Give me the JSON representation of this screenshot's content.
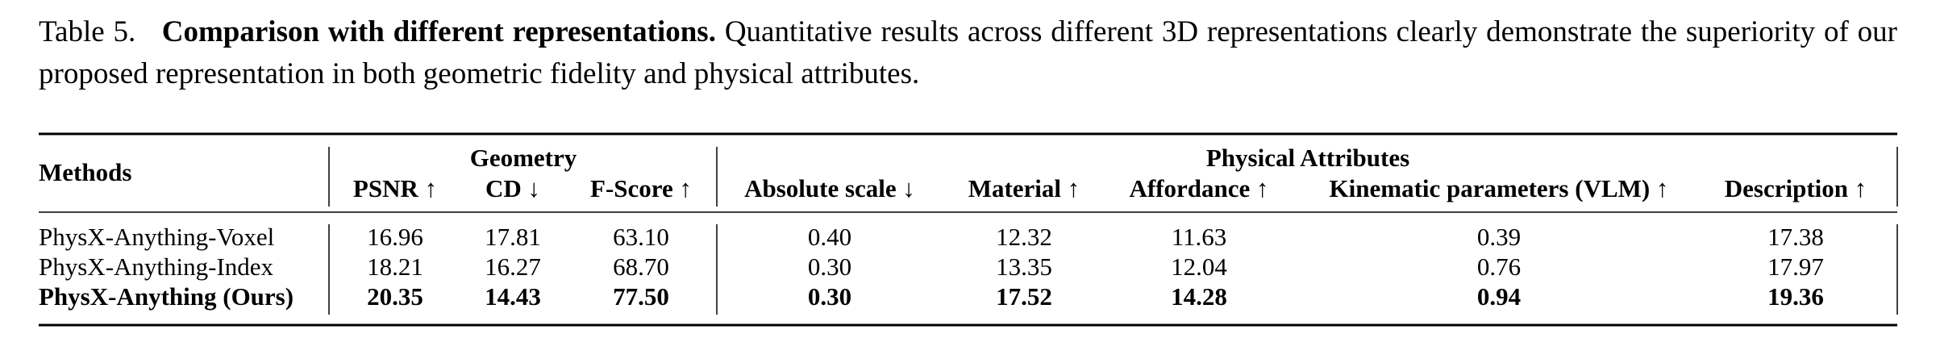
{
  "caption": {
    "label": "Table 5.",
    "title": "Comparison with different representations.",
    "text": "Quantitative results across different 3D representations clearly demonstrate the superiority of our proposed representation in both geometric fidelity and physical attributes."
  },
  "table": {
    "method_header": "Methods",
    "groups": [
      "Geometry",
      "Physical Attributes"
    ],
    "columns": [
      {
        "label": "PSNR ↑",
        "color": "#000000"
      },
      {
        "label": "CD ↓",
        "color": "#000000"
      },
      {
        "label": "F-Score ↑",
        "color": "#000000"
      },
      {
        "label": "Absolute scale ↓",
        "color": "#2a46a6"
      },
      {
        "label": "Material ↑",
        "color": "#d2335a"
      },
      {
        "label": "Affordance ↑",
        "color": "#f2a23c"
      },
      {
        "label": "Kinematic parameters (VLM) ↑",
        "color": "#6cbd3c"
      },
      {
        "label": "Description ↑",
        "color": "#7a2d18"
      }
    ],
    "rows": [
      {
        "method": "PhysX-Anything-Voxel",
        "bold": false,
        "values": [
          "16.96",
          "17.81",
          "63.10",
          "0.40",
          "12.32",
          "11.63",
          "0.39",
          "17.38"
        ]
      },
      {
        "method": "PhysX-Anything-Index",
        "bold": false,
        "values": [
          "18.21",
          "16.27",
          "68.70",
          "0.30",
          "13.35",
          "12.04",
          "0.76",
          "17.97"
        ]
      },
      {
        "method": "PhysX-Anything (Ours)",
        "bold": true,
        "values": [
          "20.35",
          "14.43",
          "77.50",
          "0.30",
          "17.52",
          "14.28",
          "0.94",
          "19.36"
        ]
      }
    ]
  }
}
